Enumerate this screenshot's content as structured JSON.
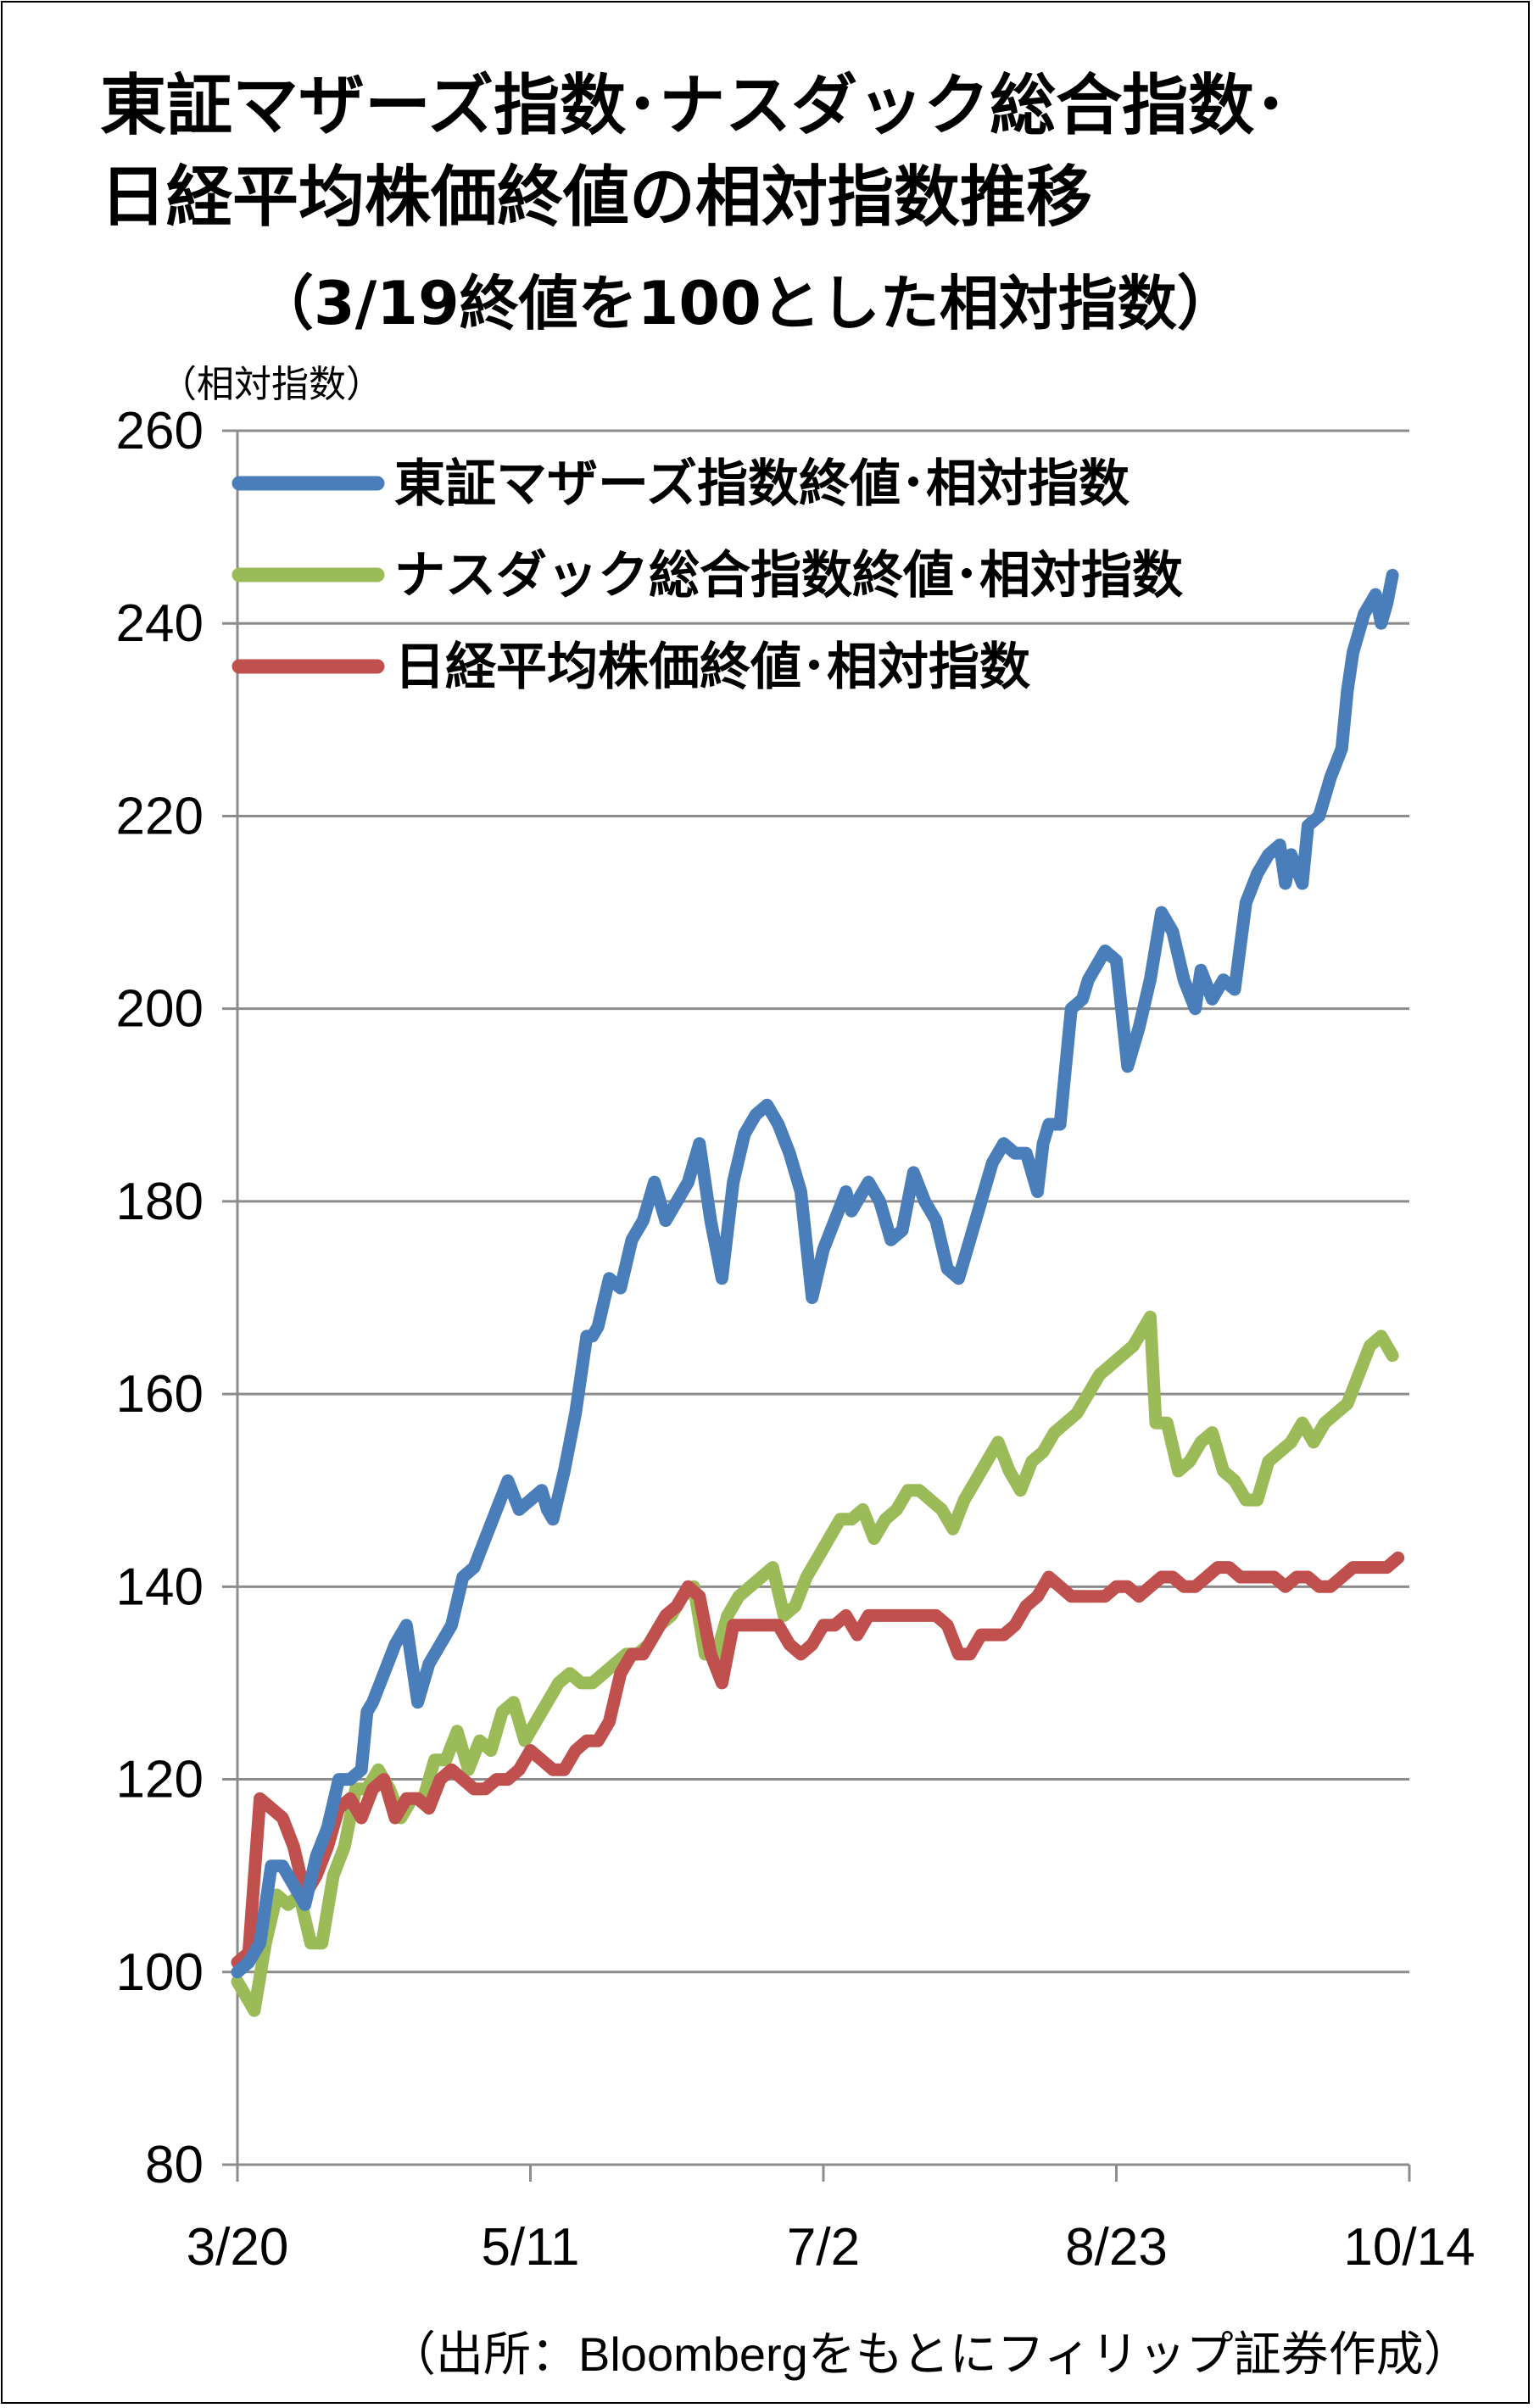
{
  "title": {
    "line1": "東証マザーズ指数･ナスダック総合指数･",
    "line2": "日経平均株価終値の相対指数推移",
    "line3": "（3/19終値を100とした相対指数）"
  },
  "unit_label": "（相対指数）",
  "source": "（出所：Bloombergをもとにフィリップ証券作成）",
  "chart_data": {
    "type": "line",
    "ylim": [
      80,
      260
    ],
    "yticks": [
      80,
      100,
      120,
      140,
      160,
      180,
      200,
      220,
      240,
      260
    ],
    "xlim": [
      0,
      208
    ],
    "xticks": [
      {
        "label": "3/20",
        "t": 0
      },
      {
        "label": "5/11",
        "t": 52
      },
      {
        "label": "7/2",
        "t": 104
      },
      {
        "label": "8/23",
        "t": 156
      },
      {
        "label": "10/14",
        "t": 208
      }
    ],
    "grid": true,
    "legend": "top-left",
    "series": [
      {
        "name": "東証マザーズ指数終値･相対指数",
        "color": "#4a7ebb",
        "points": [
          [
            0,
            100
          ],
          [
            2,
            101
          ],
          [
            4,
            103
          ],
          [
            6,
            111
          ],
          [
            8,
            111
          ],
          [
            10,
            109
          ],
          [
            12,
            107
          ],
          [
            14,
            112
          ],
          [
            16,
            115
          ],
          [
            18,
            120
          ],
          [
            20,
            120
          ],
          [
            22,
            121
          ],
          [
            23,
            127
          ],
          [
            24,
            128
          ],
          [
            26,
            131
          ],
          [
            28,
            134
          ],
          [
            30,
            136
          ],
          [
            32,
            128
          ],
          [
            34,
            132
          ],
          [
            36,
            134
          ],
          [
            38,
            136
          ],
          [
            40,
            141
          ],
          [
            42,
            142
          ],
          [
            44,
            145
          ],
          [
            46,
            148
          ],
          [
            48,
            151
          ],
          [
            50,
            148
          ],
          [
            52,
            149
          ],
          [
            54,
            150
          ],
          [
            55,
            148
          ],
          [
            56,
            147
          ],
          [
            58,
            152
          ],
          [
            60,
            158
          ],
          [
            62,
            166
          ],
          [
            63,
            166
          ],
          [
            64,
            167
          ],
          [
            66,
            172
          ],
          [
            68,
            171
          ],
          [
            70,
            176
          ],
          [
            72,
            178
          ],
          [
            74,
            182
          ],
          [
            76,
            178
          ],
          [
            78,
            180
          ],
          [
            80,
            182
          ],
          [
            82,
            186
          ],
          [
            84,
            178
          ],
          [
            86,
            172
          ],
          [
            88,
            182
          ],
          [
            90,
            187
          ],
          [
            92,
            189
          ],
          [
            94,
            190
          ],
          [
            96,
            188
          ],
          [
            98,
            185
          ],
          [
            100,
            181
          ],
          [
            102,
            170
          ],
          [
            104,
            175
          ],
          [
            106,
            178
          ],
          [
            108,
            181
          ],
          [
            109,
            179
          ],
          [
            110,
            180
          ],
          [
            112,
            182
          ],
          [
            114,
            180
          ],
          [
            116,
            176
          ],
          [
            118,
            177
          ],
          [
            120,
            183
          ],
          [
            122,
            180
          ],
          [
            124,
            178
          ],
          [
            126,
            173
          ],
          [
            128,
            172
          ],
          [
            130,
            176
          ],
          [
            132,
            180
          ],
          [
            134,
            184
          ],
          [
            136,
            186
          ],
          [
            138,
            185
          ],
          [
            140,
            185
          ],
          [
            142,
            181
          ],
          [
            143,
            186
          ],
          [
            144,
            188
          ],
          [
            146,
            188
          ],
          [
            148,
            200
          ],
          [
            150,
            201
          ],
          [
            151,
            203
          ],
          [
            154,
            206
          ],
          [
            156,
            205
          ],
          [
            158,
            194
          ],
          [
            160,
            198
          ],
          [
            162,
            203
          ],
          [
            164,
            210
          ],
          [
            166,
            208
          ],
          [
            168,
            203
          ],
          [
            170,
            200
          ],
          [
            171,
            204
          ],
          [
            173,
            201
          ],
          [
            175,
            203
          ],
          [
            177,
            202
          ],
          [
            179,
            211
          ],
          [
            181,
            214
          ],
          [
            183,
            216
          ],
          [
            185,
            217
          ],
          [
            186,
            213
          ],
          [
            187,
            216
          ],
          [
            189,
            213
          ],
          [
            190,
            219
          ],
          [
            192,
            220
          ],
          [
            194,
            224
          ],
          [
            196,
            227
          ],
          [
            197,
            233
          ],
          [
            198,
            237
          ],
          [
            200,
            241
          ],
          [
            202,
            243
          ],
          [
            203,
            240
          ],
          [
            204,
            242
          ],
          [
            205,
            245
          ]
        ]
      },
      {
        "name": "ナスダック総合指数終値･相対指数",
        "color": "#9bbb59",
        "points": [
          [
            0,
            99
          ],
          [
            2,
            97
          ],
          [
            3,
            96
          ],
          [
            5,
            103
          ],
          [
            7,
            108
          ],
          [
            9,
            107
          ],
          [
            11,
            108
          ],
          [
            13,
            103
          ],
          [
            15,
            103
          ],
          [
            17,
            110
          ],
          [
            19,
            113
          ],
          [
            21,
            119
          ],
          [
            23,
            119
          ],
          [
            25,
            121
          ],
          [
            27,
            119
          ],
          [
            29,
            116
          ],
          [
            31,
            118
          ],
          [
            33,
            118
          ],
          [
            35,
            122
          ],
          [
            37,
            122
          ],
          [
            39,
            125
          ],
          [
            41,
            121
          ],
          [
            43,
            124
          ],
          [
            45,
            123
          ],
          [
            47,
            127
          ],
          [
            49,
            128
          ],
          [
            51,
            124
          ],
          [
            53,
            126
          ],
          [
            55,
            128
          ],
          [
            57,
            130
          ],
          [
            59,
            131
          ],
          [
            61,
            130
          ],
          [
            63,
            130
          ],
          [
            65,
            131
          ],
          [
            67,
            132
          ],
          [
            69,
            133
          ],
          [
            71,
            133
          ],
          [
            73,
            134
          ],
          [
            75,
            136
          ],
          [
            77,
            137
          ],
          [
            79,
            139
          ],
          [
            81,
            140
          ],
          [
            83,
            133
          ],
          [
            85,
            133
          ],
          [
            87,
            137
          ],
          [
            89,
            139
          ],
          [
            91,
            140
          ],
          [
            93,
            141
          ],
          [
            95,
            142
          ],
          [
            97,
            137
          ],
          [
            99,
            138
          ],
          [
            101,
            141
          ],
          [
            103,
            143
          ],
          [
            105,
            145
          ],
          [
            107,
            147
          ],
          [
            109,
            147
          ],
          [
            111,
            148
          ],
          [
            113,
            145
          ],
          [
            115,
            147
          ],
          [
            117,
            148
          ],
          [
            119,
            150
          ],
          [
            121,
            150
          ],
          [
            123,
            149
          ],
          [
            125,
            148
          ],
          [
            127,
            146
          ],
          [
            129,
            149
          ],
          [
            131,
            151
          ],
          [
            133,
            153
          ],
          [
            135,
            155
          ],
          [
            137,
            152
          ],
          [
            139,
            150
          ],
          [
            141,
            153
          ],
          [
            143,
            154
          ],
          [
            145,
            156
          ],
          [
            147,
            157
          ],
          [
            149,
            158
          ],
          [
            151,
            160
          ],
          [
            153,
            162
          ],
          [
            155,
            163
          ],
          [
            157,
            164
          ],
          [
            159,
            165
          ],
          [
            160,
            166
          ],
          [
            162,
            168
          ],
          [
            163,
            157
          ],
          [
            165,
            157
          ],
          [
            167,
            152
          ],
          [
            169,
            153
          ],
          [
            171,
            155
          ],
          [
            173,
            156
          ],
          [
            175,
            152
          ],
          [
            177,
            151
          ],
          [
            179,
            149
          ],
          [
            181,
            149
          ],
          [
            183,
            153
          ],
          [
            185,
            154
          ],
          [
            187,
            155
          ],
          [
            189,
            157
          ],
          [
            191,
            155
          ],
          [
            193,
            157
          ],
          [
            195,
            158
          ],
          [
            197,
            159
          ],
          [
            199,
            162
          ],
          [
            201,
            165
          ],
          [
            203,
            166
          ],
          [
            205,
            164
          ]
        ]
      },
      {
        "name": "日経平均株価終値･相対指数",
        "color": "#c0504d",
        "points": [
          [
            0,
            101
          ],
          [
            2,
            102
          ],
          [
            4,
            118
          ],
          [
            6,
            117
          ],
          [
            8,
            116
          ],
          [
            10,
            113
          ],
          [
            12,
            108
          ],
          [
            14,
            110
          ],
          [
            16,
            113
          ],
          [
            18,
            117
          ],
          [
            20,
            118
          ],
          [
            22,
            116
          ],
          [
            24,
            119
          ],
          [
            26,
            120
          ],
          [
            28,
            116
          ],
          [
            30,
            118
          ],
          [
            32,
            118
          ],
          [
            34,
            117
          ],
          [
            36,
            120
          ],
          [
            38,
            121
          ],
          [
            40,
            120
          ],
          [
            42,
            119
          ],
          [
            44,
            119
          ],
          [
            46,
            120
          ],
          [
            48,
            120
          ],
          [
            50,
            121
          ],
          [
            52,
            123
          ],
          [
            54,
            122
          ],
          [
            56,
            121
          ],
          [
            58,
            121
          ],
          [
            60,
            123
          ],
          [
            62,
            124
          ],
          [
            64,
            124
          ],
          [
            66,
            126
          ],
          [
            68,
            131
          ],
          [
            70,
            133
          ],
          [
            72,
            133
          ],
          [
            74,
            135
          ],
          [
            76,
            137
          ],
          [
            78,
            138
          ],
          [
            80,
            140
          ],
          [
            82,
            139
          ],
          [
            84,
            133
          ],
          [
            86,
            130
          ],
          [
            88,
            136
          ],
          [
            90,
            136
          ],
          [
            92,
            136
          ],
          [
            94,
            136
          ],
          [
            96,
            136
          ],
          [
            98,
            134
          ],
          [
            100,
            133
          ],
          [
            102,
            134
          ],
          [
            104,
            136
          ],
          [
            106,
            136
          ],
          [
            108,
            137
          ],
          [
            110,
            135
          ],
          [
            112,
            137
          ],
          [
            114,
            137
          ],
          [
            116,
            137
          ],
          [
            118,
            137
          ],
          [
            120,
            137
          ],
          [
            122,
            137
          ],
          [
            124,
            137
          ],
          [
            126,
            136
          ],
          [
            128,
            133
          ],
          [
            130,
            133
          ],
          [
            132,
            135
          ],
          [
            134,
            135
          ],
          [
            136,
            135
          ],
          [
            138,
            136
          ],
          [
            140,
            138
          ],
          [
            142,
            139
          ],
          [
            144,
            141
          ],
          [
            146,
            140
          ],
          [
            148,
            139
          ],
          [
            150,
            139
          ],
          [
            152,
            139
          ],
          [
            154,
            139
          ],
          [
            156,
            140
          ],
          [
            158,
            140
          ],
          [
            160,
            139
          ],
          [
            162,
            140
          ],
          [
            164,
            141
          ],
          [
            166,
            141
          ],
          [
            168,
            140
          ],
          [
            170,
            140
          ],
          [
            172,
            141
          ],
          [
            174,
            142
          ],
          [
            176,
            142
          ],
          [
            178,
            141
          ],
          [
            180,
            141
          ],
          [
            182,
            141
          ],
          [
            184,
            141
          ],
          [
            186,
            140
          ],
          [
            188,
            141
          ],
          [
            190,
            141
          ],
          [
            192,
            140
          ],
          [
            194,
            140
          ],
          [
            196,
            141
          ],
          [
            198,
            142
          ],
          [
            200,
            142
          ],
          [
            202,
            142
          ],
          [
            204,
            142
          ],
          [
            206,
            143
          ]
        ]
      }
    ]
  }
}
